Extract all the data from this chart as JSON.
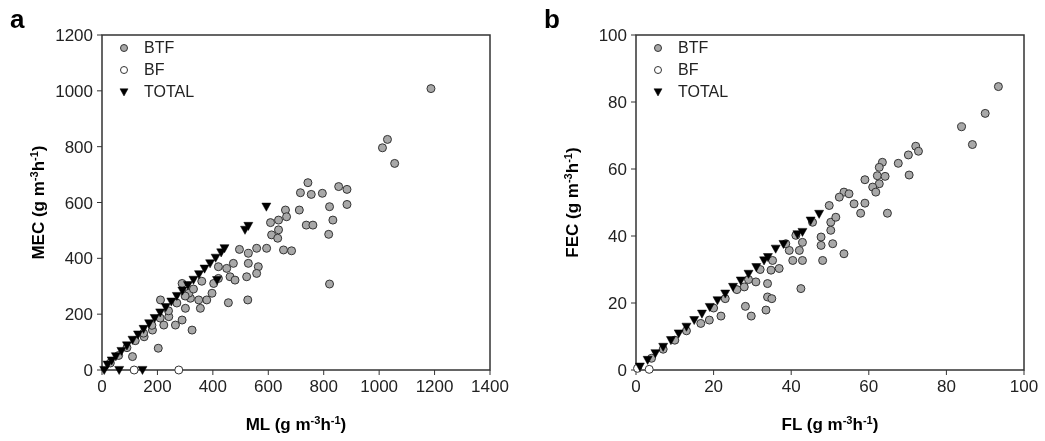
{
  "chart_data": [
    {
      "type": "scatter",
      "title": "a",
      "xlabel": "ML (g m$^{-3}$h$^{-1}$)",
      "ylabel": "MEC (g m$^{-3}$h$^{-1}$)",
      "xlim": [
        0,
        1400
      ],
      "ylim": [
        0,
        1200
      ],
      "xticks": [
        0,
        200,
        400,
        600,
        800,
        1000,
        1200,
        1400
      ],
      "yticks": [
        0,
        200,
        400,
        600,
        800,
        1000,
        1200
      ],
      "grid": false,
      "legend": "top left",
      "series": [
        {
          "name": "BTF",
          "color": "#a8a8a8",
          "marker": "circle",
          "x": [
            1187,
            1012,
            1030,
            1056,
            743,
            716,
            755,
            795,
            854,
            884,
            884,
            821,
            818,
            833,
            821,
            737,
            761,
            712,
            662,
            666,
            637,
            608,
            612,
            637,
            634,
            655,
            684,
            594,
            558,
            528,
            496,
            528,
            564,
            558,
            522,
            474,
            450,
            462,
            480,
            420,
            420,
            403,
            397,
            378,
            349,
            355,
            319,
            301,
            289,
            325,
            265,
            241,
            223,
            203,
            182,
            211,
            456,
            526,
            110,
            152,
            289,
            313,
            30,
            60,
            90,
            120,
            150,
            180,
            210,
            240,
            270,
            300,
            330,
            360
          ],
          "values": [
            1008,
            796,
            826,
            740,
            671,
            635,
            629,
            633,
            657,
            647,
            593,
            585,
            486,
            537,
            308,
            519,
            519,
            573,
            573,
            549,
            537,
            528,
            484,
            502,
            472,
            430,
            427,
            436,
            436,
            418,
            432,
            382,
            370,
            346,
            334,
            382,
            364,
            334,
            322,
            370,
            328,
            310,
            275,
            251,
            251,
            221,
            257,
            221,
            179,
            143,
            161,
            191,
            161,
            78,
            143,
            251,
            241,
            251,
            48,
            119,
            310,
            275,
            25,
            52,
            80,
            105,
            132,
            160,
            186,
            212,
            240,
            265,
            290,
            318
          ]
        },
        {
          "name": "BF",
          "color": "#ffffff",
          "marker": "circle",
          "x": [
            116,
            277
          ],
          "values": [
            0,
            0
          ]
        },
        {
          "name": "TOTAL",
          "color": "#000000",
          "marker": "triangle",
          "x": [
            8,
            20,
            35,
            50,
            62,
            70,
            90,
            110,
            130,
            146,
            150,
            170,
            190,
            210,
            230,
            250,
            270,
            290,
            310,
            330,
            350,
            370,
            390,
            410,
            415,
            430,
            442,
            516,
            528,
            593
          ],
          "values": [
            0,
            19,
            34,
            49,
            0,
            68,
            88,
            108,
            127,
            0,
            147,
            167,
            186,
            206,
            225,
            245,
            265,
            284,
            304,
            323,
            343,
            363,
            382,
            402,
            322,
            421,
            436,
            502,
            516,
            585
          ]
        }
      ]
    },
    {
      "type": "scatter",
      "title": "b",
      "xlabel": "FL (g m$^{-3}$h$^{-1}$)",
      "ylabel": "FEC (g m$^{-3}$h$^{-1}$)",
      "xlim": [
        0,
        100
      ],
      "ylim": [
        0,
        100
      ],
      "xticks": [
        0,
        20,
        40,
        60,
        80,
        100
      ],
      "yticks": [
        0,
        20,
        40,
        60,
        80,
        100
      ],
      "grid": false,
      "legend": "top left",
      "series": [
        {
          "name": "BTF",
          "color": "#a8a8a8",
          "marker": "circle",
          "x": [
            93.4,
            83.9,
            86.7,
            90,
            72.1,
            72.8,
            70.2,
            70.4,
            67.6,
            63.5,
            62.7,
            62.2,
            64.2,
            62.7,
            61,
            61.8,
            59,
            64.8,
            57.9,
            59,
            56.2,
            53.6,
            54.9,
            52.4,
            49.8,
            50.2,
            51.5,
            53.6,
            50.7,
            50.2,
            48.1,
            47.7,
            47.7,
            45.5,
            42.9,
            41.2,
            42.9,
            40.4,
            42.1,
            39.5,
            38.6,
            42.5,
            36.9,
            34.8,
            35.2,
            33.9,
            35,
            33.9,
            30.9,
            33.5,
            28.2,
            29.7,
            27.9,
            21.9,
            18.9,
            16.7,
            4,
            7,
            10,
            13,
            20,
            23,
            26,
            29,
            32
          ],
          "values": [
            84.6,
            72.6,
            67.3,
            76.6,
            66.8,
            65.3,
            64.2,
            58.2,
            61.7,
            62,
            60.5,
            58,
            57.8,
            55.6,
            54.6,
            53.1,
            56.8,
            46.8,
            46.8,
            49.8,
            49.6,
            53.1,
            52.6,
            51.6,
            49.1,
            44.1,
            45.6,
            34.7,
            37.7,
            41.7,
            32.7,
            39.7,
            37.2,
            44.1,
            38.1,
            40.2,
            32.7,
            32.7,
            35.7,
            35.7,
            37.7,
            24.3,
            30.3,
            29.8,
            32.7,
            21.8,
            21.3,
            25.8,
            26.3,
            17.9,
            19,
            16.1,
            24.8,
            16.1,
            14.9,
            13.9,
            3.5,
            6.2,
            8.9,
            11.7,
            18.5,
            21.3,
            24,
            27,
            30
          ]
        },
        {
          "name": "BF",
          "color": "#ffffff",
          "marker": "circle",
          "x": [
            3.4,
            0.4
          ],
          "values": [
            0.2,
            0.5
          ]
        },
        {
          "name": "TOTAL",
          "color": "#000000",
          "marker": "triangle",
          "x": [
            1,
            3,
            5,
            7,
            9,
            11,
            13,
            15,
            17,
            19,
            21,
            23,
            25,
            27,
            29,
            31,
            33,
            34,
            36,
            38,
            41.6,
            42.9,
            45,
            47.2
          ],
          "values": [
            1,
            3,
            5,
            6.9,
            8.9,
            10.9,
            12.9,
            14.9,
            16.8,
            18.8,
            20.8,
            22.8,
            24.8,
            26.7,
            28.7,
            30.7,
            32.7,
            33.7,
            36.2,
            37.6,
            40.5,
            41.2,
            44.6,
            46.6
          ]
        }
      ]
    }
  ]
}
